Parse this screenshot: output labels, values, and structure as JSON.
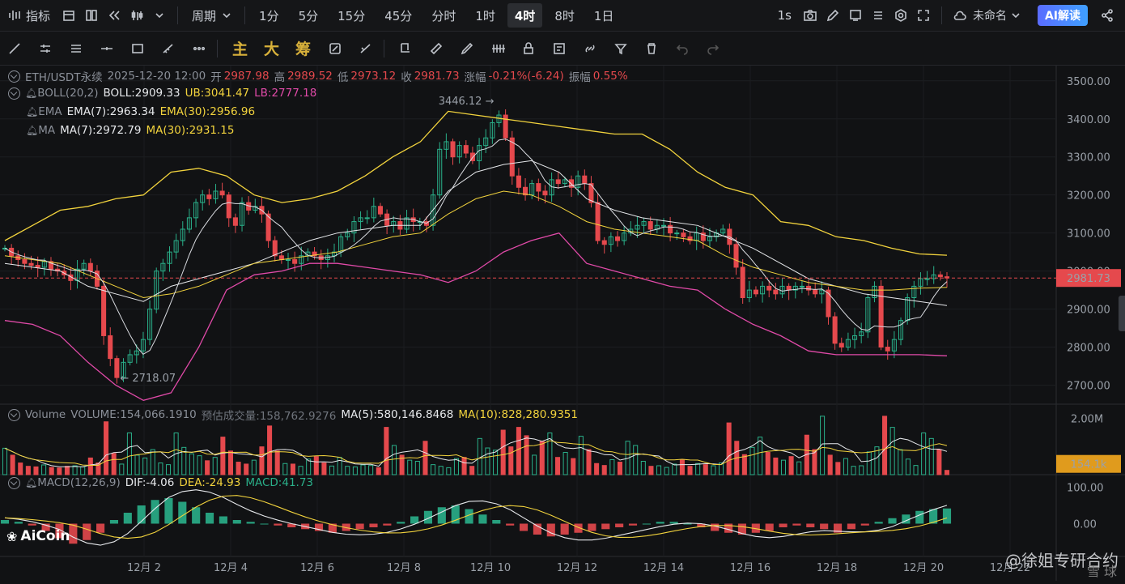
{
  "topbar": {
    "indicators": "指标",
    "period": "周期",
    "timeframes": [
      "1分",
      "5分",
      "15分",
      "45分",
      "分时",
      "1时",
      "4时",
      "8时",
      "1日"
    ],
    "active_timeframe": "4时",
    "tick": "1s",
    "layout_name": "未命名",
    "ai_button": "AI解读"
  },
  "toolbar": {
    "tool_main": "主",
    "tool_big": "大",
    "tool_chip": "筹"
  },
  "legend": {
    "symbol": "ETH/USDT永续",
    "datetime": "2025-12-20 12:00",
    "open_label": "开",
    "open": "2987.98",
    "high_label": "高",
    "high": "2989.52",
    "low_label": "低",
    "low": "2973.12",
    "close_label": "收",
    "close": "2981.73",
    "change_label": "涨幅",
    "change": "-0.21%(-6.24)",
    "amp_label": "振幅",
    "amp": "0.55%",
    "boll_name": "BOLL(20,2)",
    "boll": "BOLL:2909.33",
    "boll_ub": "UB:3041.47",
    "boll_lb": "LB:2777.18",
    "ema_name": "EMA",
    "ema7": "EMA(7):2963.34",
    "ema30": "EMA(30):2956.96",
    "ma_name": "MA",
    "ma7": "MA(7):2972.79",
    "ma30": "MA(30):2931.15",
    "vol_name": "Volume",
    "vol": "VOLUME:154,066.1910",
    "vol_est": "预估成交量:158,762.9276",
    "vol_ma5": "MA(5):580,146.8468",
    "vol_ma10": "MA(10):828,280.9351",
    "macd_name": "MACD(12,26,9)",
    "dif": "DIF:-4.06",
    "dea": "DEA:-24.93",
    "macd": "MACD:41.73"
  },
  "watermark": "AiCoin",
  "signature": "@徐姐专研合约",
  "signature_sub": "雪 球",
  "colors": {
    "up": "#2ab08a",
    "down": "#e5494d",
    "boll_mid": "#e6e8eb",
    "boll_band": "#f2d33d",
    "boll_lower": "#e04aa8"
  },
  "chart_data": [
    {
      "type": "candlestick",
      "title": "ETH/USDT永续 4时",
      "ylim": [
        2650,
        3540
      ],
      "y_ticks": [
        "3500.00",
        "3400.00",
        "3300.00",
        "3200.00",
        "3100.00",
        "3000.00",
        "2900.00",
        "2800.00",
        "2700.00"
      ],
      "x_ticks": [
        "12月 2",
        "12月 4",
        "12月 6",
        "12月 8",
        "12月 10",
        "12月 12",
        "12月 14",
        "12月 16",
        "12月 18",
        "12月 20",
        "12月 22"
      ],
      "last_price": "2981.73",
      "annotations": {
        "high": "3446.12",
        "low": "2718.07"
      },
      "closes": [
        3060,
        3040,
        3030,
        3020,
        3015,
        3010,
        3025,
        3005,
        3000,
        2990,
        2975,
        3005,
        3020,
        3000,
        2960,
        2830,
        2770,
        2720,
        2760,
        2780,
        2790,
        2820,
        2900,
        3000,
        3020,
        3050,
        3080,
        3110,
        3140,
        3180,
        3200,
        3190,
        3210,
        3200,
        3140,
        3120,
        3180,
        3160,
        3170,
        3150,
        3080,
        3040,
        3030,
        3030,
        3020,
        3040,
        3050,
        3040,
        3030,
        3040,
        3050,
        3090,
        3100,
        3130,
        3140,
        3140,
        3170,
        3150,
        3120,
        3130,
        3110,
        3140,
        3130,
        3130,
        3120,
        3200,
        3320,
        3340,
        3300,
        3330,
        3310,
        3290,
        3330,
        3350,
        3390,
        3410,
        3350,
        3250,
        3220,
        3200,
        3230,
        3210,
        3200,
        3240,
        3230,
        3240,
        3220,
        3250,
        3230,
        3180,
        3080,
        3070,
        3090,
        3080,
        3100,
        3110,
        3120,
        3130,
        3110,
        3120,
        3120,
        3100,
        3100,
        3090,
        3080,
        3100,
        3080,
        3090,
        3100,
        3110,
        3070,
        3010,
        2930,
        2950,
        2940,
        2960,
        2950,
        2940,
        2960,
        2950,
        2960,
        2960,
        2950,
        2940,
        2950,
        2880,
        2810,
        2800,
        2820,
        2830,
        2840,
        2930,
        2960,
        2800,
        2790,
        2820,
        2870,
        2930,
        2960,
        2980,
        2980,
        2990,
        2985,
        2981.73
      ],
      "series": [
        {
          "name": "BOLL-UB",
          "values": [
            3080,
            3120,
            3160,
            3170,
            3190,
            3200,
            3260,
            3270,
            3250,
            3200,
            3180,
            3190,
            3210,
            3250,
            3300,
            3340,
            3420,
            3410,
            3400,
            3390,
            3380,
            3370,
            3360,
            3360,
            3320,
            3260,
            3220,
            3200,
            3130,
            3120,
            3090,
            3080,
            3060,
            3045,
            3041.47
          ]
        },
        {
          "name": "BOLL",
          "values": [
            3020,
            3010,
            3000,
            2960,
            2940,
            2920,
            2960,
            2980,
            3000,
            3020,
            3050,
            3080,
            3100,
            3110,
            3120,
            3120,
            3210,
            3260,
            3280,
            3290,
            3260,
            3190,
            3160,
            3140,
            3130,
            3120,
            3090,
            3060,
            3020,
            2980,
            2960,
            2940,
            2930,
            2920,
            2909.33
          ]
        },
        {
          "name": "BOLL-LB",
          "values": [
            2870,
            2860,
            2830,
            2760,
            2700,
            2660,
            2680,
            2800,
            2950,
            2990,
            3000,
            3020,
            3020,
            3010,
            3000,
            2990,
            2970,
            3000,
            3050,
            3080,
            3100,
            3020,
            3000,
            2980,
            2960,
            2950,
            2900,
            2860,
            2830,
            2790,
            2780,
            2780,
            2780,
            2780,
            2777.18
          ]
        },
        {
          "name": "EMA(30)",
          "values": [
            3040,
            3030,
            3020,
            2990,
            2960,
            2930,
            2940,
            2960,
            2990,
            3020,
            3030,
            3040,
            3050,
            3070,
            3090,
            3100,
            3150,
            3190,
            3210,
            3200,
            3170,
            3130,
            3110,
            3100,
            3090,
            3080,
            3040,
            3010,
            2990,
            2970,
            2960,
            2950,
            2950,
            2955,
            2956.96
          ]
        }
      ]
    },
    {
      "type": "bar",
      "title": "Volume",
      "y_ticks": [
        "2.00M"
      ],
      "last_value": "154.1k",
      "values_k": [
        950,
        700,
        420,
        300,
        280,
        350,
        260,
        240,
        300,
        320,
        280,
        600,
        420,
        1900,
        760,
        380,
        1500,
        700,
        600,
        900,
        420,
        360,
        1500,
        980,
        750,
        680,
        500,
        620,
        1350,
        850,
        450,
        380,
        520,
        1000,
        1750,
        850,
        400,
        380,
        300,
        560,
        650,
        420,
        310,
        620,
        300,
        280,
        350,
        330,
        250,
        1700,
        1050,
        700,
        520,
        480,
        1200,
        360,
        300,
        250,
        580,
        620,
        300,
        1300,
        960,
        880,
        1600,
        1000,
        1700,
        1400,
        700,
        1200,
        1500,
        620,
        800,
        580,
        1380,
        900,
        400,
        330,
        540,
        450,
        1200,
        1050,
        480,
        300,
        320,
        260,
        380,
        540,
        300,
        400,
        360,
        320,
        420,
        1860,
        1200,
        720,
        980,
        1350,
        800,
        600,
        520,
        650,
        460,
        1420,
        900,
        2100,
        700,
        440,
        580,
        300,
        320,
        820,
        1000,
        2100,
        1700,
        900,
        560,
        330,
        1500,
        1300,
        900,
        154.1
      ]
    },
    {
      "type": "bar",
      "title": "MACD(12,26,9)",
      "y_ticks": [
        "100.00",
        "0.00"
      ],
      "values": [
        10,
        5,
        -5,
        -20,
        -40,
        -55,
        -45,
        -25,
        10,
        30,
        50,
        65,
        70,
        60,
        45,
        30,
        20,
        10,
        5,
        0,
        -5,
        -10,
        -15,
        -20,
        -25,
        -20,
        -15,
        -10,
        -5,
        5,
        20,
        35,
        45,
        50,
        40,
        25,
        10,
        -5,
        -20,
        -30,
        -35,
        -30,
        -25,
        -20,
        -15,
        -10,
        -5,
        0,
        5,
        5,
        0,
        -10,
        -20,
        -25,
        -30,
        -25,
        -20,
        -10,
        -5,
        -10,
        -15,
        -25,
        -15,
        -5,
        5,
        15,
        25,
        35,
        40,
        41.73
      ]
    }
  ]
}
